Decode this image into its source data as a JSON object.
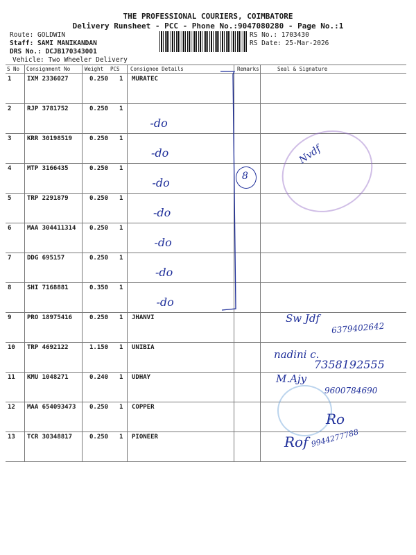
{
  "header": {
    "company": "THE PROFESSIONAL COURIERS, COIMBATORE",
    "subtitle": "Delivery Runsheet - PCC - Phone No.:9047080280 - Page No.:1",
    "route": "Route: GOLDWIN",
    "staff": "Staff: SAMI MANIKANDAN",
    "drs": "DRS No.: DCJB170343001",
    "vehicle": "Vehicle: Two Wheeler Delivery",
    "rs_no": "RS No.: 1703430",
    "rs_date": "RS Date: 25-Mar-2026"
  },
  "table": {
    "columns": [
      "S No",
      "Consignment No",
      "Weight",
      "PCS",
      "Consignee Details",
      "Remarks",
      "Seal & Signature"
    ],
    "rows": [
      {
        "sno": "1",
        "consignment": "IXM 2336027",
        "weight": "0.250",
        "pcs": "1",
        "consignee": "MURATEC",
        "hand": ""
      },
      {
        "sno": "2",
        "consignment": "RJP 3781752",
        "weight": "0.250",
        "pcs": "1",
        "consignee": "",
        "hand": "-do"
      },
      {
        "sno": "3",
        "consignment": "KRR 30198519",
        "weight": "0.250",
        "pcs": "1",
        "consignee": "",
        "hand": "-do"
      },
      {
        "sno": "4",
        "consignment": "MTP 3166435",
        "weight": "0.250",
        "pcs": "1",
        "consignee": "",
        "hand": "-do"
      },
      {
        "sno": "5",
        "consignment": "TRP 2291879",
        "weight": "0.250",
        "pcs": "1",
        "consignee": "",
        "hand": "-do"
      },
      {
        "sno": "6",
        "consignment": "MAA 304411314",
        "weight": "0.250",
        "pcs": "1",
        "consignee": "",
        "hand": "-do"
      },
      {
        "sno": "7",
        "consignment": "DDG 695157",
        "weight": "0.250",
        "pcs": "1",
        "consignee": "",
        "hand": "-do"
      },
      {
        "sno": "8",
        "consignment": "SHI 7168881",
        "weight": "0.350",
        "pcs": "1",
        "consignee": "",
        "hand": "-do"
      },
      {
        "sno": "9",
        "consignment": "PRO 18975416",
        "weight": "0.250",
        "pcs": "1",
        "consignee": "JHANVI",
        "hand": ""
      },
      {
        "sno": "10",
        "consignment": "TRP 4692122",
        "weight": "1.150",
        "pcs": "1",
        "consignee": "UNIBIA",
        "hand": ""
      },
      {
        "sno": "11",
        "consignment": "KMU 1048271",
        "weight": "0.240",
        "pcs": "1",
        "consignee": "UDHAY",
        "hand": ""
      },
      {
        "sno": "12",
        "consignment": "MAA 654093473",
        "weight": "0.250",
        "pcs": "1",
        "consignee": "COPPER",
        "hand": ""
      },
      {
        "sno": "13",
        "consignment": "TCR 30348817",
        "weight": "0.250",
        "pcs": "1",
        "consignee": "PIONEER",
        "hand": ""
      }
    ]
  },
  "handwriting": {
    "remarks_count": "8",
    "sig_9_name": "Sw Jdf",
    "sig_9_phone": "6379402642",
    "sig_10_name": "nadini c.",
    "sig_10_phone": "7358192555",
    "sig_11_name": "M.Ajy",
    "sig_11_phone": "9600784690",
    "sig_13_phone": "9944277788"
  },
  "ink_color": "#1f2f9a"
}
